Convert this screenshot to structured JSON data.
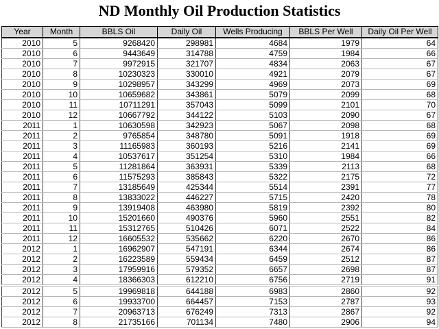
{
  "title": "ND Monthly Oil Production Statistics",
  "chart_data": {
    "type": "table",
    "title": "ND Monthly Oil Production Statistics",
    "columns": [
      "Year",
      "Month",
      "BBLS Oil",
      "Daily Oil",
      "Wells Producing",
      "BBLS Per Well",
      "Daily Oil Per Well"
    ],
    "rows": [
      [
        2010,
        5,
        9268420,
        298981,
        4684,
        1979,
        64
      ],
      [
        2010,
        6,
        9443649,
        314788,
        4759,
        1984,
        66
      ],
      [
        2010,
        7,
        9972915,
        321707,
        4834,
        2063,
        67
      ],
      [
        2010,
        8,
        10230323,
        330010,
        4921,
        2079,
        67
      ],
      [
        2010,
        9,
        10298957,
        343299,
        4969,
        2073,
        69
      ],
      [
        2010,
        10,
        10659682,
        343861,
        5079,
        2099,
        68
      ],
      [
        2010,
        11,
        10711291,
        357043,
        5099,
        2101,
        70
      ],
      [
        2010,
        12,
        10667792,
        344122,
        5103,
        2090,
        67
      ],
      [
        2011,
        1,
        10630598,
        342923,
        5067,
        2098,
        68
      ],
      [
        2011,
        2,
        9765854,
        348780,
        5091,
        1918,
        69
      ],
      [
        2011,
        3,
        11165983,
        360193,
        5216,
        2141,
        69
      ],
      [
        2011,
        4,
        10537617,
        351254,
        5310,
        1984,
        66
      ],
      [
        2011,
        5,
        11281864,
        363931,
        5339,
        2113,
        68
      ],
      [
        2011,
        6,
        11575293,
        385843,
        5322,
        2175,
        72
      ],
      [
        2011,
        7,
        13185649,
        425344,
        5514,
        2391,
        77
      ],
      [
        2011,
        8,
        13833022,
        446227,
        5715,
        2420,
        78
      ],
      [
        2011,
        9,
        13919408,
        463980,
        5819,
        2392,
        80
      ],
      [
        2011,
        10,
        15201660,
        490376,
        5960,
        2551,
        82
      ],
      [
        2011,
        11,
        15312765,
        510426,
        6071,
        2522,
        84
      ],
      [
        2011,
        12,
        16605532,
        535662,
        6220,
        2670,
        86
      ],
      [
        2012,
        1,
        16962907,
        547191,
        6344,
        2674,
        86
      ],
      [
        2012,
        2,
        16223589,
        559434,
        6459,
        2512,
        87
      ],
      [
        2012,
        3,
        17959916,
        579352,
        6657,
        2698,
        87
      ],
      [
        2012,
        4,
        18366303,
        612210,
        6756,
        2719,
        91
      ],
      [
        2012,
        5,
        19969818,
        644188,
        6983,
        2860,
        92
      ],
      [
        2012,
        6,
        19933700,
        664457,
        7153,
        2787,
        93
      ],
      [
        2012,
        7,
        20963713,
        676249,
        7313,
        2867,
        92
      ],
      [
        2012,
        8,
        21735166,
        701134,
        7480,
        2906,
        94
      ]
    ]
  },
  "colors": {
    "header_bg": "#d6d6d6",
    "grid_vertical": "#3c3c3c",
    "grid_horizontal": "#b6b6b6",
    "border": "#000000",
    "text": "#000000",
    "background": "#ffffff"
  }
}
